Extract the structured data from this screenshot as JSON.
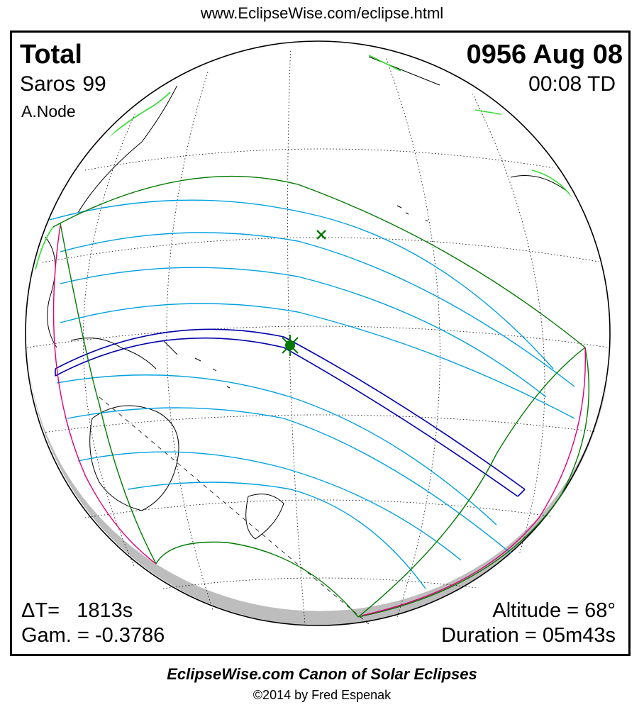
{
  "header": {
    "url": "www.EclipseWise.com/eclipse.html"
  },
  "eclipse": {
    "type": "Total",
    "saros_label": "Saros",
    "saros_number": "99",
    "node": "A.Node",
    "date": "0956 Aug 08",
    "time": "00:08 TD",
    "delta_t": "ΔT=   1813s",
    "gamma": "Gam. = -0.3786",
    "altitude": "Altitude = 68°",
    "duration": "Duration = 05m43s"
  },
  "footer": {
    "canon": "EclipseWise.com Canon of Solar Eclipses",
    "copyright": "©2014 by Fred Espenak"
  },
  "colors": {
    "totality_path": "#0000aa",
    "penumbral_limits": "#007a00",
    "partial_contours": "#00a0e0",
    "rise_set_curves": "#e0007a",
    "greatest_eclipse": "#007a00",
    "coastline_highlight": "#33dd33"
  },
  "markers": [
    {
      "name": "greatest-eclipse",
      "symbol": "star"
    },
    {
      "name": "subsolar-point",
      "symbol": "x"
    }
  ]
}
